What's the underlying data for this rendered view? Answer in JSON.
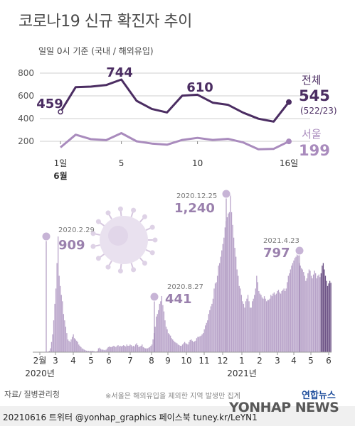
{
  "header": {
    "title": "코로나19 신규 확진자 추이",
    "subtitle": "일일 0시 기준 (국내 / 해외유입)"
  },
  "colors": {
    "total": "#4b2d62",
    "seoul": "#a98bbd",
    "bar": "#b8a3c9",
    "bar_recent": "#6e5387",
    "grid": "#cfcfcf"
  },
  "chart_data": [
    {
      "type": "line",
      "x_ticks": [
        "1일",
        "5",
        "10",
        "16일"
      ],
      "x_month_label": "6월",
      "x": [
        1,
        2,
        3,
        4,
        5,
        6,
        7,
        8,
        9,
        10,
        11,
        12,
        13,
        14,
        15,
        16
      ],
      "ylim": [
        0,
        800
      ],
      "yticks": [
        "800",
        "600",
        "400",
        "200"
      ],
      "series": [
        {
          "name": "전체",
          "values": [
            459,
            677,
            681,
            695,
            744,
            556,
            485,
            454,
            602,
            610,
            540,
            521,
            452,
            399,
            373,
            545
          ],
          "end_value": "545",
          "end_detail": "(522/23)"
        },
        {
          "name": "서울",
          "values": [
            146,
            258,
            219,
            210,
            272,
            200,
            180,
            170,
            212,
            230,
            212,
            221,
            190,
            130,
            133,
            199
          ],
          "end_value": "199"
        }
      ],
      "annotations": [
        "459",
        "744",
        "610"
      ]
    },
    {
      "type": "bar",
      "x_tick_labels": [
        "2월",
        "3",
        "4",
        "5",
        "6",
        "7",
        "8",
        "9",
        "10",
        "11",
        "12",
        "1",
        "2",
        "3",
        "4",
        "5",
        "6"
      ],
      "year_labels": [
        "2020년",
        "2021년"
      ],
      "ylim": [
        0,
        1300
      ],
      "peaks": [
        {
          "date": "2020.2.29",
          "value": "909"
        },
        {
          "date": "2020.8.27",
          "value": "441"
        },
        {
          "date": "2020.12.25",
          "value": "1,240"
        },
        {
          "date": "2021.4.23",
          "value": "797"
        }
      ],
      "monthly_profile": [
        {
          "month": "2020-02",
          "values": [
            1,
            1,
            1,
            1,
            2,
            3,
            5,
            10,
            30,
            80,
            140,
            250,
            380,
            500,
            700,
            909
          ]
        },
        {
          "month": "2020-03",
          "values": [
            600,
            520,
            450,
            400,
            300,
            250,
            200,
            150,
            100,
            90,
            80,
            100,
            120,
            140,
            110,
            100
          ]
        },
        {
          "month": "2020-04",
          "values": [
            90,
            80,
            60,
            50,
            40,
            30,
            25,
            20,
            15,
            12,
            10,
            10,
            8,
            10,
            10,
            10
          ]
        },
        {
          "month": "2020-05",
          "values": [
            8,
            5,
            5,
            10,
            30,
            35,
            25,
            20,
            20,
            18,
            15,
            20,
            30,
            40,
            45,
            40
          ]
        },
        {
          "month": "2020-06",
          "values": [
            40,
            45,
            50,
            45,
            40,
            50,
            55,
            45,
            50,
            45,
            50,
            55,
            50,
            45,
            60,
            50
          ]
        },
        {
          "month": "2020-07",
          "values": [
            50,
            60,
            55,
            45,
            50,
            45,
            60,
            70,
            55,
            40,
            45,
            50,
            60,
            40,
            35,
            30
          ]
        },
        {
          "month": "2020-08",
          "values": [
            30,
            30,
            35,
            40,
            50,
            60,
            100,
            150,
            200,
            280,
            300,
            330,
            380,
            400,
            441,
            370
          ]
        },
        {
          "month": "2020-09",
          "values": [
            320,
            250,
            200,
            180,
            150,
            140,
            130,
            110,
            100,
            90,
            80,
            75,
            70,
            60,
            55,
            50
          ]
        },
        {
          "month": "2020-10",
          "values": [
            50,
            60,
            70,
            80,
            70,
            65,
            60,
            80,
            95,
            100,
            90,
            80,
            85,
            90,
            110,
            120
          ]
        },
        {
          "month": "2020-11",
          "values": [
            120,
            125,
            130,
            140,
            150,
            180,
            210,
            230,
            250,
            300,
            330,
            360,
            380,
            420,
            500,
            540
          ]
        },
        {
          "month": "2020-12",
          "values": [
            550,
            600,
            680,
            700,
            750,
            800,
            850,
            900,
            980,
            1030,
            1060,
            1090,
            1100,
            1240,
            1100,
            1000
          ]
        },
        {
          "month": "2021-01",
          "values": [
            900,
            820,
            750,
            650,
            600,
            520,
            500,
            450,
            400,
            380,
            350,
            400,
            420,
            450,
            400,
            350
          ]
        },
        {
          "month": "2021-02",
          "values": [
            350,
            400,
            420,
            450,
            500,
            600,
            550,
            480,
            460,
            450,
            430,
            420,
            440,
            420,
            400,
            410
          ]
        },
        {
          "month": "2021-03",
          "values": [
            410,
            420,
            450,
            440,
            460,
            470,
            450,
            460,
            480,
            490,
            470,
            460,
            480,
            490,
            500,
            480
          ]
        },
        {
          "month": "2021-04",
          "values": [
            500,
            550,
            600,
            620,
            650,
            680,
            700,
            720,
            740,
            750,
            797,
            760,
            700,
            680,
            660,
            650
          ]
        },
        {
          "month": "2021-05",
          "values": [
            630,
            600,
            560,
            580,
            620,
            650,
            640,
            600,
            580,
            610,
            640,
            620,
            580,
            600,
            610,
            590
          ]
        },
        {
          "month": "2021-06",
          "values": [
            620,
            680,
            700,
            650,
            600,
            560,
            520,
            540,
            560,
            545
          ]
        }
      ]
    }
  ],
  "footer": {
    "source": "자료/ 질병관리청",
    "note": "※서울은 해외유입을 제외한 지역 발생만 집계",
    "credit": "20210616 트위터 @yonhap_graphics  페이스북 tuney.kr/LeYN1",
    "logo": "연합뉴스",
    "watermark": "YONHAP NEWS"
  }
}
